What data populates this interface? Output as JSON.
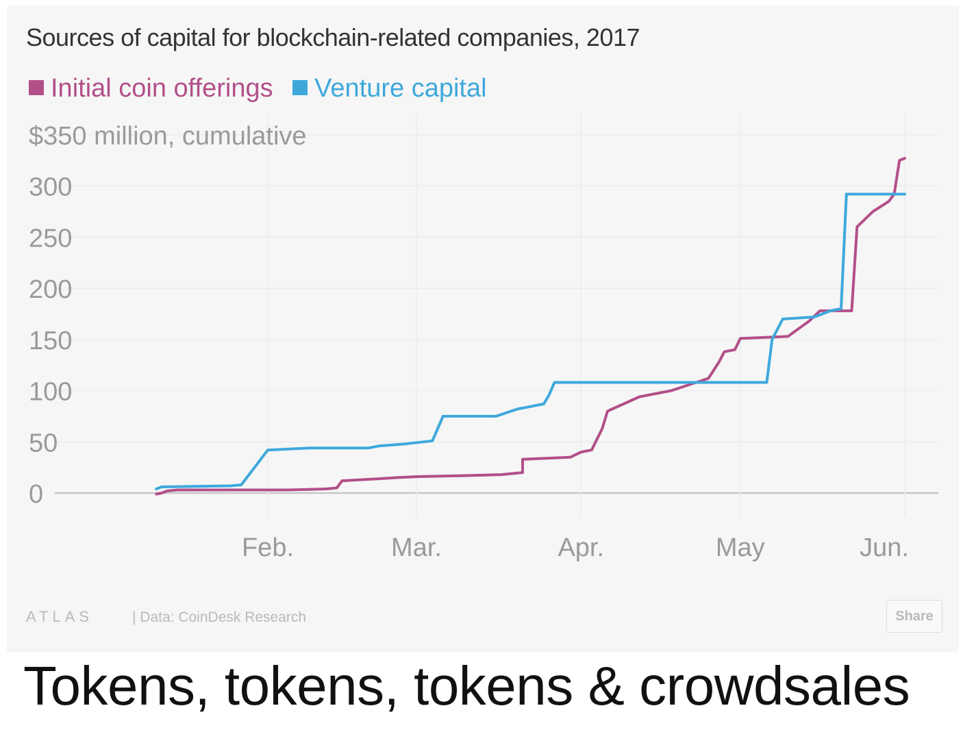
{
  "chart_data": {
    "type": "line",
    "title": "Sources of capital for blockchain-related companies, 2017",
    "ylabel": "$350 million, cumulative",
    "xlabel": "",
    "ylim": [
      0,
      350
    ],
    "yticks": [
      0,
      50,
      100,
      150,
      200,
      250,
      300
    ],
    "xticks": [
      {
        "label": "Feb.",
        "date": "2017-02-01"
      },
      {
        "label": "Mar.",
        "date": "2017-03-01"
      },
      {
        "label": "Apr.",
        "date": "2017-04-01"
      },
      {
        "label": "May",
        "date": "2017-05-01"
      },
      {
        "label": "Jun.",
        "date": "2017-06-01"
      }
    ],
    "grid": true,
    "legend_position": "top-left",
    "series": [
      {
        "name": "Initial coin offerings",
        "color": "#b24f88",
        "points": [
          [
            "2017-01-11",
            -1
          ],
          [
            "2017-01-12",
            0
          ],
          [
            "2017-01-13",
            2
          ],
          [
            "2017-01-15",
            3
          ],
          [
            "2017-02-05",
            3
          ],
          [
            "2017-02-12",
            4
          ],
          [
            "2017-02-14",
            5
          ],
          [
            "2017-02-15",
            12
          ],
          [
            "2017-02-22",
            14
          ],
          [
            "2017-02-25",
            15
          ],
          [
            "2017-03-01",
            16
          ],
          [
            "2017-03-10",
            17
          ],
          [
            "2017-03-17",
            18
          ],
          [
            "2017-03-21",
            20
          ],
          [
            "2017-03-21",
            33
          ],
          [
            "2017-03-30",
            35
          ],
          [
            "2017-04-01",
            40
          ],
          [
            "2017-04-03",
            42
          ],
          [
            "2017-04-05",
            63
          ],
          [
            "2017-04-06",
            80
          ],
          [
            "2017-04-12",
            94
          ],
          [
            "2017-04-18",
            100
          ],
          [
            "2017-04-25",
            112
          ],
          [
            "2017-04-27",
            128
          ],
          [
            "2017-04-28",
            138
          ],
          [
            "2017-04-30",
            140
          ],
          [
            "2017-05-01",
            151
          ],
          [
            "2017-05-10",
            153
          ],
          [
            "2017-05-14",
            168
          ],
          [
            "2017-05-16",
            178
          ],
          [
            "2017-05-22",
            178
          ],
          [
            "2017-05-23",
            260
          ],
          [
            "2017-05-26",
            275
          ],
          [
            "2017-05-29",
            285
          ],
          [
            "2017-05-30",
            292
          ],
          [
            "2017-05-31",
            325
          ],
          [
            "2017-06-01",
            327
          ]
        ]
      },
      {
        "name": "Venture capital",
        "color": "#3ea8db",
        "points": [
          [
            "2017-01-11",
            4
          ],
          [
            "2017-01-12",
            6
          ],
          [
            "2017-01-25",
            7
          ],
          [
            "2017-01-27",
            8
          ],
          [
            "2017-02-01",
            42
          ],
          [
            "2017-02-09",
            44
          ],
          [
            "2017-02-20",
            44
          ],
          [
            "2017-02-22",
            46
          ],
          [
            "2017-02-27",
            48
          ],
          [
            "2017-03-04",
            51
          ],
          [
            "2017-03-06",
            75
          ],
          [
            "2017-03-16",
            75
          ],
          [
            "2017-03-20",
            82
          ],
          [
            "2017-03-25",
            87
          ],
          [
            "2017-03-26",
            96
          ],
          [
            "2017-03-27",
            108
          ],
          [
            "2017-05-06",
            108
          ],
          [
            "2017-05-07",
            150
          ],
          [
            "2017-05-09",
            170
          ],
          [
            "2017-05-15",
            172
          ],
          [
            "2017-05-18",
            178
          ],
          [
            "2017-05-20",
            180
          ],
          [
            "2017-05-21",
            292
          ],
          [
            "2017-06-01",
            292
          ]
        ]
      }
    ]
  },
  "source": {
    "brand": "ATLAS",
    "separator": "|",
    "text": "Data: CoinDesk Research"
  },
  "share_label": "Share",
  "caption": "Tokens, tokens, tokens & crowdsales"
}
